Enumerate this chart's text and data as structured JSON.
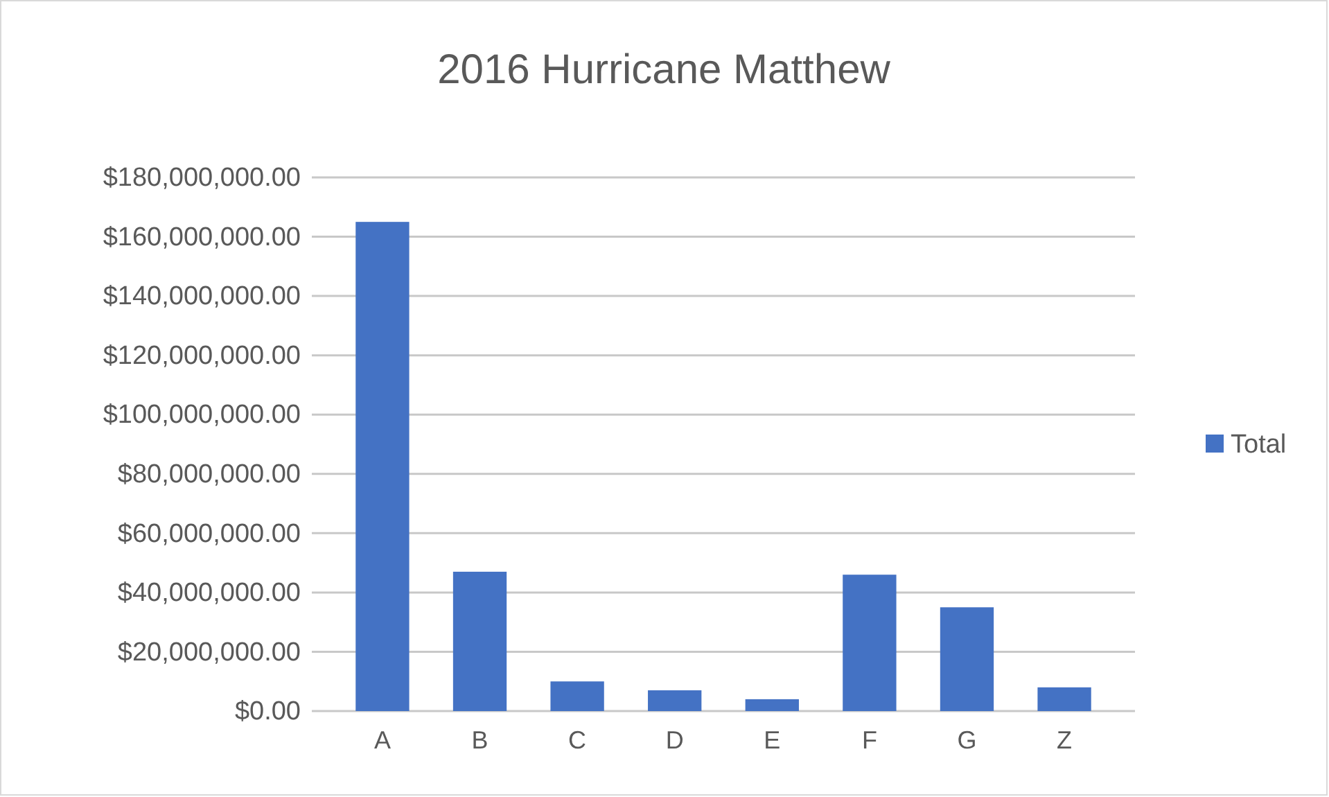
{
  "chart_data": {
    "type": "bar",
    "title": "2016 Hurricane Matthew",
    "categories": [
      "A",
      "B",
      "C",
      "D",
      "E",
      "F",
      "G",
      "Z"
    ],
    "series": [
      {
        "name": "Total",
        "color": "#4472c4",
        "values": [
          165000000,
          47000000,
          10000000,
          7000000,
          4000000,
          46000000,
          35000000,
          8000000
        ]
      }
    ],
    "ylim": [
      0,
      180000000
    ],
    "yticks": [
      {
        "value": 0,
        "label": "$0.00"
      },
      {
        "value": 20000000,
        "label": "$20,000,000.00"
      },
      {
        "value": 40000000,
        "label": "$40,000,000.00"
      },
      {
        "value": 60000000,
        "label": "$60,000,000.00"
      },
      {
        "value": 80000000,
        "label": "$80,000,000.00"
      },
      {
        "value": 100000000,
        "label": "$100,000,000.00"
      },
      {
        "value": 120000000,
        "label": "$120,000,000.00"
      },
      {
        "value": 140000000,
        "label": "$140,000,000.00"
      },
      {
        "value": 160000000,
        "label": "$160,000,000.00"
      },
      {
        "value": 180000000,
        "label": "$180,000,000.00"
      }
    ],
    "grid": "y",
    "legend": "right"
  }
}
